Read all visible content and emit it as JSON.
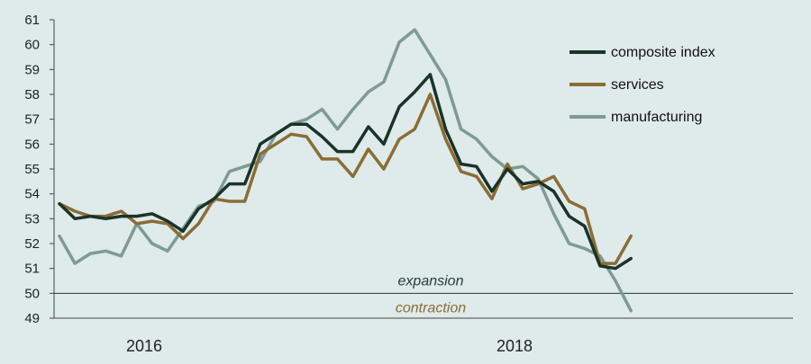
{
  "chart_data": {
    "type": "line",
    "ylim": [
      49,
      61
    ],
    "yticks": [
      49,
      50,
      51,
      52,
      53,
      54,
      55,
      56,
      57,
      58,
      59,
      60,
      61
    ],
    "x_labels": [
      "2016",
      "2018"
    ],
    "reference_line": 50,
    "annotations": {
      "above": {
        "text": "expansion",
        "color": "#2a3b3a"
      },
      "below": {
        "text": "contraction",
        "color": "#8a6d36"
      }
    },
    "legend": "top-right",
    "grid": false,
    "series": [
      {
        "name": "composite index",
        "color": "#1a3328",
        "values": [
          53.6,
          53.0,
          53.1,
          53.0,
          53.1,
          53.1,
          53.2,
          52.9,
          52.5,
          53.4,
          53.8,
          54.4,
          54.4,
          56.0,
          56.4,
          56.8,
          56.8,
          56.3,
          55.7,
          55.7,
          56.7,
          56.0,
          57.5,
          58.1,
          58.8,
          56.6,
          55.2,
          55.1,
          54.1,
          55.0,
          54.4,
          54.5,
          54.1,
          53.1,
          52.7,
          51.1,
          51.0,
          51.4
        ]
      },
      {
        "name": "services",
        "color": "#8a6d36",
        "values": [
          53.6,
          53.3,
          53.1,
          53.1,
          53.3,
          52.8,
          52.9,
          52.8,
          52.2,
          52.8,
          53.8,
          53.7,
          53.7,
          55.6,
          56.0,
          56.4,
          56.3,
          55.4,
          55.4,
          54.7,
          55.8,
          55.0,
          56.2,
          56.6,
          58.0,
          56.2,
          54.9,
          54.7,
          53.8,
          55.2,
          54.2,
          54.4,
          54.7,
          53.7,
          53.4,
          51.2,
          51.2,
          52.3
        ]
      },
      {
        "name": "manufacturing",
        "color": "#7e9b92",
        "values": [
          52.3,
          51.2,
          51.6,
          51.7,
          51.5,
          52.8,
          52.0,
          51.7,
          52.6,
          53.5,
          53.7,
          54.9,
          55.1,
          55.3,
          56.4,
          56.8,
          57.0,
          57.4,
          56.6,
          57.4,
          58.1,
          58.5,
          60.1,
          60.6,
          59.6,
          58.6,
          56.6,
          56.2,
          55.5,
          55.0,
          55.1,
          54.6,
          53.2,
          52.0,
          51.8,
          51.5,
          50.5,
          49.3
        ]
      }
    ]
  }
}
